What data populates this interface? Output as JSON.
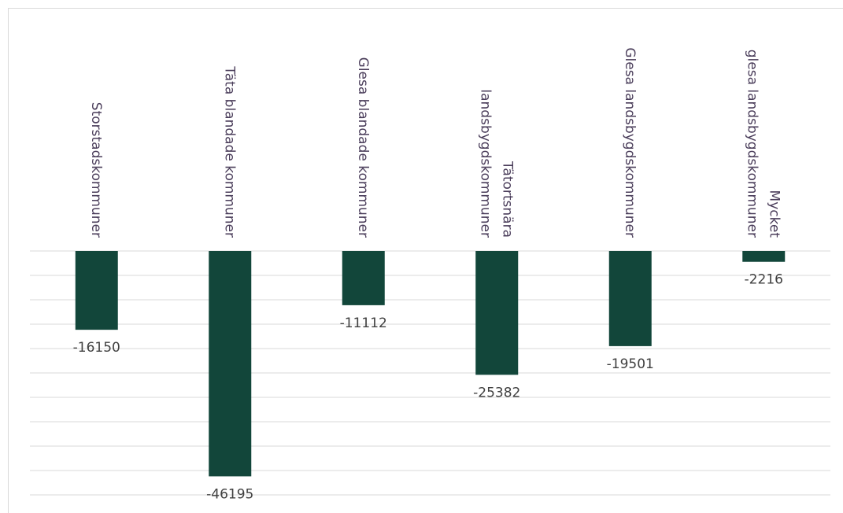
{
  "chart_data": {
    "type": "bar",
    "categories": [
      "Storstadskommuner",
      "Täta blandade kommuner",
      "Glesa blandade kommuner",
      "Tätortsnära landsbygdskommuner",
      "Glesa landsbygdskommuner",
      "Mycket glesa landsbygdskommuner"
    ],
    "values": [
      -16150,
      -46195,
      -11112,
      -25382,
      -19501,
      -2216
    ],
    "color": "#12463a",
    "ylim": [
      -50000,
      0
    ],
    "yticks": [
      0,
      -5000,
      -10000,
      -15000,
      -20000,
      -25000,
      -30000,
      -35000,
      -40000,
      -45000,
      -50000
    ],
    "grid": true
  }
}
